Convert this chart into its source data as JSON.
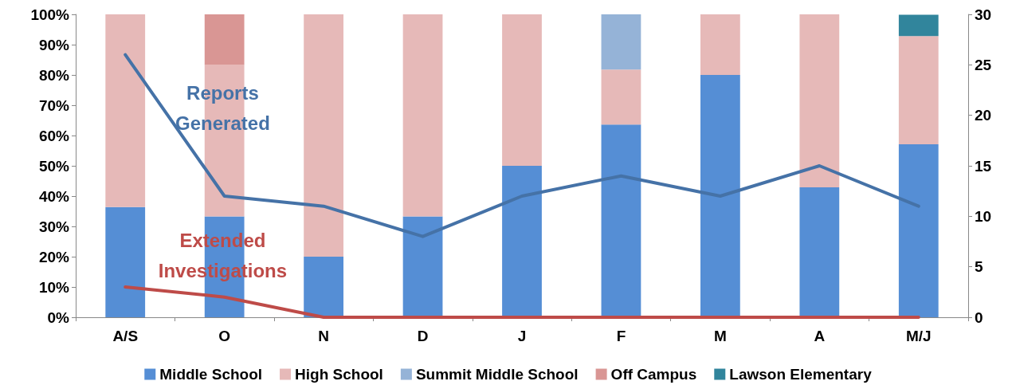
{
  "chart_data": {
    "type": "bar",
    "stacked": true,
    "categories": [
      "A/S",
      "O",
      "N",
      "D",
      "J",
      "F",
      "M",
      "A",
      "M/J"
    ],
    "series": [
      {
        "name": "Middle School",
        "color": "#558ed5",
        "values": [
          36.4,
          33.3,
          20,
          33.3,
          50,
          63.6,
          80,
          42.9,
          57.1
        ]
      },
      {
        "name": "High School",
        "color": "#e6b9b8",
        "values": [
          63.6,
          50,
          80,
          66.7,
          50,
          18.2,
          20,
          57.1,
          35.7
        ]
      },
      {
        "name": "Summit Middle School",
        "color": "#95b3d7",
        "values": [
          0,
          0,
          0,
          0,
          0,
          18.2,
          0,
          0,
          0
        ]
      },
      {
        "name": "Off Campus",
        "color": "#d99694",
        "values": [
          0,
          16.7,
          0,
          0,
          0,
          0,
          0,
          0,
          0
        ]
      },
      {
        "name": "Lawson Elementary",
        "color": "#31859c",
        "values": [
          0,
          0,
          0,
          0,
          0,
          0,
          0,
          0,
          7.1
        ]
      },
      {
        "name": "Reports Generated",
        "type": "line",
        "axis": "y2",
        "color": "#4572a7",
        "values": [
          26,
          12,
          11,
          8,
          12,
          14,
          12,
          15,
          11
        ]
      },
      {
        "name": "Extended Investigations",
        "type": "line",
        "axis": "y2",
        "color": "#be4b48",
        "values": [
          3,
          2,
          0,
          0,
          0,
          0,
          0,
          0,
          0
        ]
      }
    ],
    "ylim": [
      0,
      100
    ],
    "yticks": [
      {
        "value": 0,
        "label": "0%"
      },
      {
        "value": 10,
        "label": "10%"
      },
      {
        "value": 20,
        "label": "20%"
      },
      {
        "value": 30,
        "label": "30%"
      },
      {
        "value": 40,
        "label": "40%"
      },
      {
        "value": 50,
        "label": "50%"
      },
      {
        "value": 60,
        "label": "60%"
      },
      {
        "value": 70,
        "label": "70%"
      },
      {
        "value": 80,
        "label": "80%"
      },
      {
        "value": 90,
        "label": "90%"
      },
      {
        "value": 100,
        "label": "100%"
      }
    ],
    "y2lim": [
      0,
      30
    ],
    "y2ticks": [
      0,
      5,
      10,
      15,
      20,
      25,
      30
    ],
    "legend": "bottom",
    "grid": false,
    "marker": "none",
    "line_style": "solid"
  }
}
